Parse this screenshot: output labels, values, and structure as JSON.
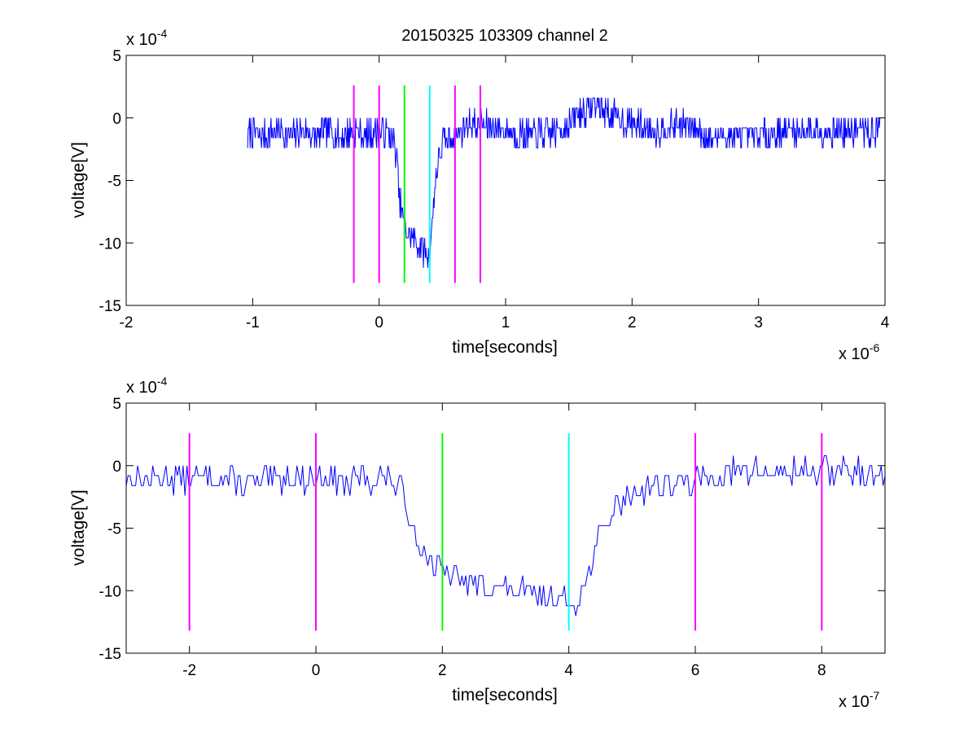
{
  "chart_data": [
    {
      "type": "line",
      "title": "20150325 103309 channel 2",
      "xlabel": "time[seconds]",
      "ylabel": "voltage[V]",
      "x_exponent_base": "x 10",
      "x_exponent_power": "-6",
      "y_exponent_base": "x 10",
      "y_exponent_power": "-4",
      "xlim": [
        -2,
        4
      ],
      "ylim": [
        -15,
        5
      ],
      "xticks": [
        -2,
        -1,
        0,
        1,
        2,
        3,
        4
      ],
      "xtick_labels": [
        "-2",
        "-1",
        "0",
        "1",
        "2",
        "3",
        "4"
      ],
      "yticks": [
        5,
        0,
        -5,
        -10,
        -15
      ],
      "ytick_labels": [
        "5",
        "0",
        "-5",
        "-10",
        "-15"
      ],
      "grid": false,
      "series": [
        {
          "color": "#0000ff",
          "x": [
            -1.04,
            -1.0,
            -0.9,
            -0.8,
            -0.7,
            -0.6,
            -0.5,
            -0.4,
            -0.3,
            -0.2,
            -0.1,
            0.0,
            0.1,
            0.14,
            0.16,
            0.2,
            0.25,
            0.3,
            0.35,
            0.38,
            0.4,
            0.42,
            0.45,
            0.5,
            0.6,
            0.7,
            0.8,
            1.0,
            1.2,
            1.4,
            1.5,
            1.6,
            1.7,
            1.8,
            2.0,
            2.2,
            2.4,
            2.6,
            2.8,
            3.0,
            3.2,
            3.4,
            3.6,
            3.8,
            3.96
          ],
          "y": [
            -1.5,
            -1.0,
            -1.5,
            -1.0,
            -1.5,
            -1.0,
            -1.5,
            -1.0,
            -1.5,
            -1.0,
            -1.5,
            -1.0,
            -1.5,
            -3.0,
            -6.5,
            -8.5,
            -9.5,
            -10.0,
            -10.5,
            -11.0,
            -10.5,
            -8.5,
            -4.5,
            -2.0,
            -1.5,
            -0.5,
            -0.5,
            -1.0,
            -1.5,
            -1.0,
            -0.5,
            0.5,
            1.0,
            0.5,
            -0.5,
            -1.0,
            -0.5,
            -1.5,
            -1.5,
            -1.5,
            -1.0,
            -1.0,
            -1.0,
            -1.0,
            -1.0
          ],
          "noise_amplitude": 1.2
        }
      ],
      "markers": [
        {
          "x": -0.2,
          "color": "#ff00ff"
        },
        {
          "x": 0.0,
          "color": "#ff00ff"
        },
        {
          "x": 0.2,
          "color": "#00ff00"
        },
        {
          "x": 0.4,
          "color": "#00ffff"
        },
        {
          "x": 0.6,
          "color": "#ff00ff"
        },
        {
          "x": 0.8,
          "color": "#ff00ff"
        }
      ],
      "marker_ylim": [
        -13.2,
        2.6
      ]
    },
    {
      "type": "line",
      "title": "",
      "xlabel": "time[seconds]",
      "ylabel": "voltage[V]",
      "x_exponent_base": "x 10",
      "x_exponent_power": "-7",
      "y_exponent_base": "x 10",
      "y_exponent_power": "-4",
      "xlim": [
        -3,
        9
      ],
      "ylim": [
        -15,
        5
      ],
      "xticks": [
        -2,
        0,
        2,
        4,
        6,
        8
      ],
      "xtick_labels": [
        "-2",
        "0",
        "2",
        "4",
        "6",
        "8"
      ],
      "yticks": [
        5,
        0,
        -5,
        -10,
        -15
      ],
      "ytick_labels": [
        "5",
        "0",
        "-5",
        "-10",
        "-15"
      ],
      "grid": false,
      "series": [
        {
          "color": "#0000ff",
          "x": [
            -3.0,
            -2.5,
            -2.0,
            -1.5,
            -1.0,
            -0.5,
            0.0,
            0.3,
            0.5,
            0.8,
            1.0,
            1.3,
            1.5,
            1.7,
            2.0,
            2.5,
            3.0,
            3.5,
            3.8,
            4.0,
            4.1,
            4.3,
            4.5,
            4.8,
            5.0,
            5.5,
            6.0,
            6.5,
            7.0,
            7.5,
            8.0,
            8.5,
            9.0
          ],
          "y": [
            -1.0,
            -1.0,
            -1.0,
            -1.0,
            -1.5,
            -1.0,
            -1.0,
            -1.0,
            -1.5,
            -1.0,
            -1.0,
            -1.5,
            -4.0,
            -7.0,
            -8.5,
            -9.5,
            -10.0,
            -10.5,
            -10.5,
            -11.0,
            -11.0,
            -9.0,
            -5.5,
            -3.0,
            -2.0,
            -1.5,
            -1.5,
            -0.5,
            -0.5,
            -0.5,
            -0.5,
            -0.5,
            -1.0
          ],
          "noise_amplitude": 1.1
        }
      ],
      "markers": [
        {
          "x": -2,
          "color": "#ff00ff"
        },
        {
          "x": 0,
          "color": "#ff00ff"
        },
        {
          "x": 2,
          "color": "#00ff00"
        },
        {
          "x": 4,
          "color": "#00ffff"
        },
        {
          "x": 6,
          "color": "#ff00ff"
        },
        {
          "x": 8,
          "color": "#ff00ff"
        }
      ],
      "marker_ylim": [
        -13.2,
        2.6
      ]
    }
  ]
}
